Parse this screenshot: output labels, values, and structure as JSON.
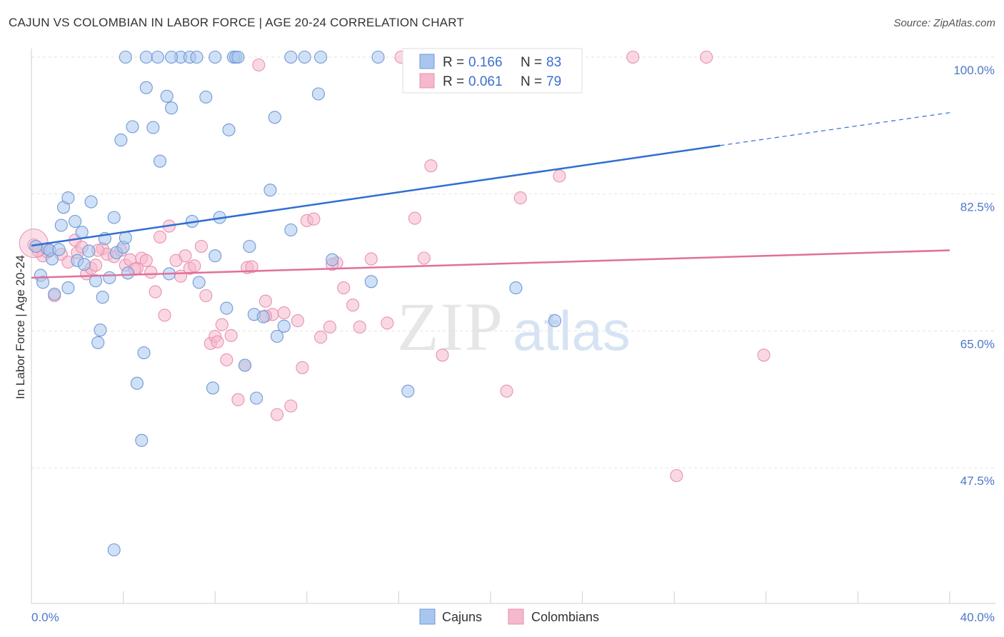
{
  "title": "CAJUN VS COLOMBIAN IN LABOR FORCE | AGE 20-24 CORRELATION CHART",
  "source": "Source: ZipAtlas.com",
  "watermark": {
    "zip": "ZIP",
    "atlas": "atlas"
  },
  "colors": {
    "cajuns_fill": "#a9c6ee",
    "cajuns_stroke": "#6f9ad6",
    "cajuns_line": "#2f6fd1",
    "colombians_fill": "#f5b8cc",
    "colombians_stroke": "#e891ad",
    "colombians_line": "#e0709a",
    "axis_text": "#4a78c8",
    "grid": "#e3e3e3"
  },
  "legend": {
    "r_label": "R =",
    "n_label": "N =",
    "cajuns": {
      "r": "0.166",
      "n": "83"
    },
    "colombians": {
      "r": "0.061",
      "n": "79"
    }
  },
  "bottom_legend": {
    "cajuns": "Cajuns",
    "colombians": "Colombians"
  },
  "chart_data": {
    "type": "scatter",
    "title": "CAJUN VS COLOMBIAN IN LABOR FORCE | AGE 20-24 CORRELATION CHART",
    "xlabel": "",
    "ylabel": "In Labor Force | Age 20-24",
    "xlim": [
      0,
      40
    ],
    "ylim": [
      32,
      101.5
    ],
    "x_tick_labels": [
      "0.0%",
      "40.0%"
    ],
    "y_ticks": [
      100.0,
      82.5,
      65.0,
      47.5
    ],
    "y_tick_labels": [
      "100.0%",
      "82.5%",
      "65.0%",
      "47.5%"
    ],
    "grid": true,
    "legend_position": "top-center",
    "series": [
      {
        "name": "Cajuns",
        "trend": {
          "x": [
            0,
            30
          ],
          "y": [
            75.9,
            88.7
          ],
          "dashed_to": [
            40,
            92.9
          ]
        },
        "points": [
          [
            0.2,
            75.8
          ],
          [
            0.4,
            72.1
          ],
          [
            0.5,
            71.2
          ],
          [
            0.7,
            75.5
          ],
          [
            0.9,
            74.2
          ],
          [
            1.0,
            69.7
          ],
          [
            0.8,
            75.3
          ],
          [
            1.2,
            75.4
          ],
          [
            1.3,
            78.5
          ],
          [
            1.4,
            80.8
          ],
          [
            1.6,
            82.0
          ],
          [
            1.6,
            70.5
          ],
          [
            1.9,
            79.0
          ],
          [
            2.0,
            74.0
          ],
          [
            2.2,
            77.6
          ],
          [
            2.3,
            73.5
          ],
          [
            2.5,
            75.2
          ],
          [
            2.6,
            81.5
          ],
          [
            2.8,
            71.4
          ],
          [
            3.0,
            65.1
          ],
          [
            2.9,
            63.5
          ],
          [
            3.1,
            69.3
          ],
          [
            3.2,
            76.8
          ],
          [
            3.4,
            71.8
          ],
          [
            3.6,
            79.5
          ],
          [
            3.7,
            75.0
          ],
          [
            3.9,
            89.4
          ],
          [
            4.0,
            75.7
          ],
          [
            4.1,
            76.9
          ],
          [
            4.2,
            72.4
          ],
          [
            4.4,
            91.1
          ],
          [
            4.6,
            58.3
          ],
          [
            4.8,
            51.0
          ],
          [
            4.9,
            62.2
          ],
          [
            5.0,
            96.1
          ],
          [
            5.3,
            91.0
          ],
          [
            5.6,
            86.7
          ],
          [
            5.9,
            95.0
          ],
          [
            6.0,
            72.3
          ],
          [
            6.1,
            93.5
          ],
          [
            6.5,
            100.0
          ],
          [
            6.9,
            100.0
          ],
          [
            7.0,
            79.0
          ],
          [
            7.3,
            71.2
          ],
          [
            7.6,
            94.9
          ],
          [
            7.9,
            57.7
          ],
          [
            8.0,
            74.6
          ],
          [
            8.2,
            79.5
          ],
          [
            8.5,
            67.9
          ],
          [
            8.6,
            90.7
          ],
          [
            8.8,
            100.0
          ],
          [
            8.9,
            100.0
          ],
          [
            9.0,
            100.0
          ],
          [
            9.3,
            60.6
          ],
          [
            9.5,
            75.8
          ],
          [
            9.7,
            67.1
          ],
          [
            9.8,
            56.4
          ],
          [
            10.1,
            66.8
          ],
          [
            10.4,
            83.0
          ],
          [
            10.6,
            92.3
          ],
          [
            10.7,
            64.3
          ],
          [
            11.0,
            65.6
          ],
          [
            11.3,
            77.9
          ],
          [
            11.3,
            100.0
          ],
          [
            11.9,
            100.0
          ],
          [
            12.5,
            95.3
          ],
          [
            12.6,
            100.0
          ],
          [
            13.1,
            74.1
          ],
          [
            14.8,
            71.3
          ],
          [
            15.1,
            100.0
          ],
          [
            16.4,
            57.3
          ],
          [
            17.7,
            100.0
          ],
          [
            18.0,
            100.0
          ],
          [
            19.0,
            100.0
          ],
          [
            21.1,
            70.5
          ],
          [
            22.8,
            66.3
          ],
          [
            3.6,
            37.0
          ],
          [
            5.0,
            100.0
          ],
          [
            5.5,
            100.0
          ],
          [
            4.1,
            100.0
          ],
          [
            6.1,
            100.0
          ],
          [
            7.2,
            100.0
          ],
          [
            8.0,
            100.0
          ]
        ]
      },
      {
        "name": "Colombians",
        "trend": {
          "x": [
            0,
            40
          ],
          "y": [
            71.8,
            75.3
          ]
        },
        "points": [
          [
            0.1,
            76.0
          ],
          [
            0.3,
            75.2
          ],
          [
            0.5,
            74.6
          ],
          [
            0.7,
            75.1
          ],
          [
            1.0,
            69.5
          ],
          [
            1.3,
            74.8
          ],
          [
            1.6,
            73.8
          ],
          [
            1.9,
            76.6
          ],
          [
            2.0,
            75.0
          ],
          [
            2.2,
            75.7
          ],
          [
            2.4,
            72.3
          ],
          [
            2.6,
            73.0
          ],
          [
            2.8,
            73.4
          ],
          [
            3.1,
            75.5
          ],
          [
            3.3,
            74.8
          ],
          [
            3.6,
            74.5
          ],
          [
            3.9,
            75.3
          ],
          [
            4.1,
            73.4
          ],
          [
            4.3,
            74.1
          ],
          [
            4.6,
            73.0
          ],
          [
            4.8,
            74.3
          ],
          [
            5.0,
            74.0
          ],
          [
            5.2,
            72.5
          ],
          [
            5.4,
            70.0
          ],
          [
            5.6,
            77.0
          ],
          [
            5.8,
            67.0
          ],
          [
            6.0,
            78.4
          ],
          [
            6.3,
            74.0
          ],
          [
            6.5,
            72.0
          ],
          [
            6.7,
            74.6
          ],
          [
            6.9,
            73.0
          ],
          [
            7.1,
            73.3
          ],
          [
            7.4,
            75.8
          ],
          [
            7.6,
            69.5
          ],
          [
            7.8,
            63.4
          ],
          [
            8.0,
            64.3
          ],
          [
            8.1,
            63.6
          ],
          [
            8.3,
            65.8
          ],
          [
            8.5,
            61.3
          ],
          [
            8.7,
            64.4
          ],
          [
            9.0,
            56.2
          ],
          [
            9.3,
            60.6
          ],
          [
            9.4,
            73.1
          ],
          [
            9.6,
            73.2
          ],
          [
            9.9,
            99.0
          ],
          [
            10.2,
            68.8
          ],
          [
            10.5,
            67.1
          ],
          [
            10.7,
            54.3
          ],
          [
            11.0,
            67.3
          ],
          [
            11.3,
            55.4
          ],
          [
            11.6,
            66.3
          ],
          [
            11.8,
            60.3
          ],
          [
            12.0,
            79.1
          ],
          [
            12.3,
            79.3
          ],
          [
            12.6,
            64.2
          ],
          [
            13.0,
            65.5
          ],
          [
            13.3,
            73.7
          ],
          [
            13.6,
            70.5
          ],
          [
            14.0,
            68.3
          ],
          [
            14.3,
            65.5
          ],
          [
            14.8,
            74.2
          ],
          [
            15.5,
            66.0
          ],
          [
            16.1,
            100.0
          ],
          [
            16.7,
            79.4
          ],
          [
            17.1,
            74.3
          ],
          [
            17.4,
            86.1
          ],
          [
            17.9,
            61.9
          ],
          [
            18.0,
            100.0
          ],
          [
            20.7,
            57.3
          ],
          [
            21.3,
            82.0
          ],
          [
            23.0,
            84.8
          ],
          [
            26.2,
            100.0
          ],
          [
            28.1,
            46.5
          ],
          [
            29.4,
            100.0
          ],
          [
            31.9,
            61.9
          ],
          [
            2.9,
            75.3
          ],
          [
            4.5,
            72.9
          ],
          [
            10.2,
            66.9
          ],
          [
            13.1,
            73.5
          ]
        ]
      }
    ]
  }
}
